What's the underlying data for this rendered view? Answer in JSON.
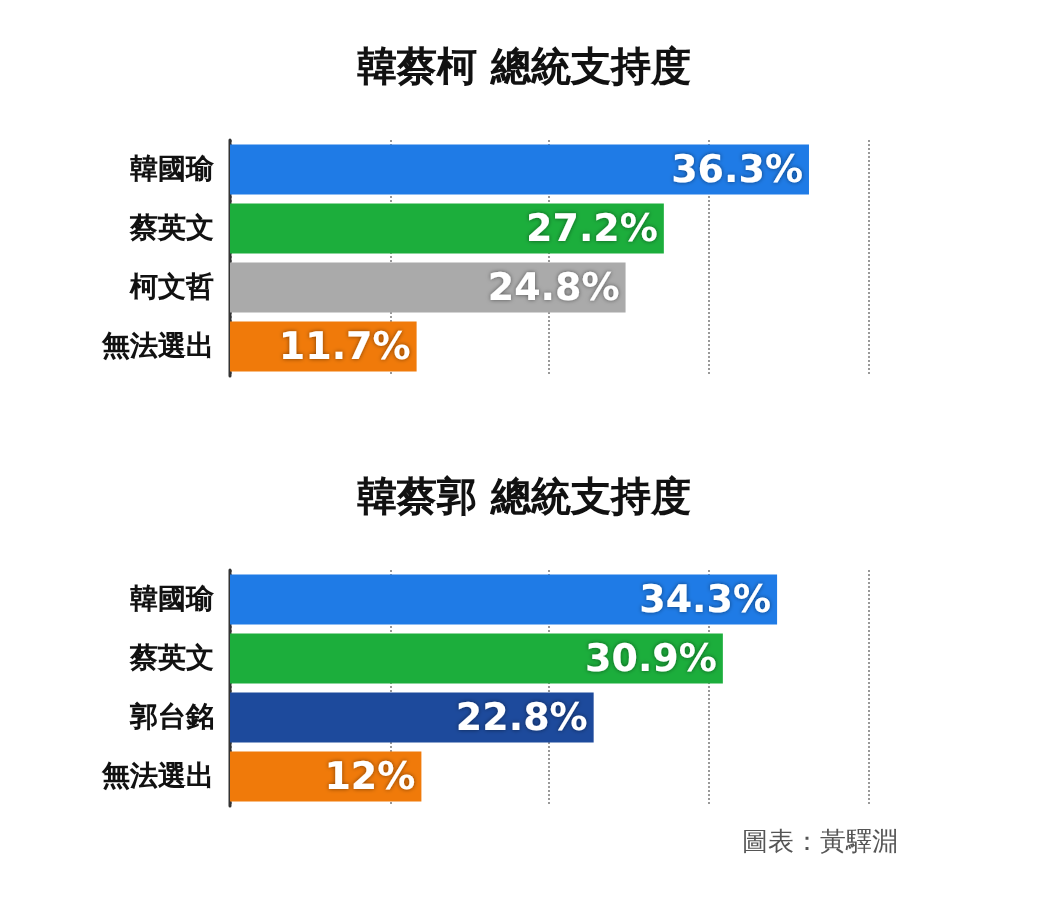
{
  "chart_data": [
    {
      "type": "bar",
      "orientation": "horizontal",
      "title": "韓蔡柯 總統支持度",
      "categories": [
        "韓國瑜",
        "蔡英文",
        "柯文哲",
        "無法選出"
      ],
      "values": [
        36.3,
        27.2,
        24.8,
        11.7
      ],
      "value_labels": [
        "36.3%",
        "27.2%",
        "24.8%",
        "11.7%"
      ],
      "colors": [
        "#1f7be6",
        "#1cae3c",
        "#aaaaaa",
        "#f07a0a"
      ],
      "xlim": [
        0,
        40
      ],
      "xticks": [
        {
          "value": 0,
          "label": null
        },
        {
          "value": 10,
          "label": null
        },
        {
          "value": 20,
          "label": null
        },
        {
          "value": 30,
          "label": null
        },
        {
          "value": 40,
          "label": null
        }
      ],
      "grid": "x",
      "tick_labels": "y"
    },
    {
      "type": "bar",
      "orientation": "horizontal",
      "title": "韓蔡郭 總統支持度",
      "categories": [
        "韓國瑜",
        "蔡英文",
        "郭台銘",
        "無法選出"
      ],
      "values": [
        34.3,
        30.9,
        22.8,
        12
      ],
      "value_labels": [
        "34.3%",
        "30.9%",
        "22.8%",
        "12%"
      ],
      "colors": [
        "#1f7be6",
        "#1cae3c",
        "#1d4a9c",
        "#f07a0a"
      ],
      "xlim": [
        0,
        40
      ],
      "xticks": [
        {
          "value": 0,
          "label": null
        },
        {
          "value": 10,
          "label": null
        },
        {
          "value": 20,
          "label": null
        },
        {
          "value": 30,
          "label": null
        },
        {
          "value": 40,
          "label": null
        }
      ],
      "grid": "x",
      "tick_labels": "y",
      "annotations": [
        "圖表：黃驛淵"
      ]
    }
  ]
}
